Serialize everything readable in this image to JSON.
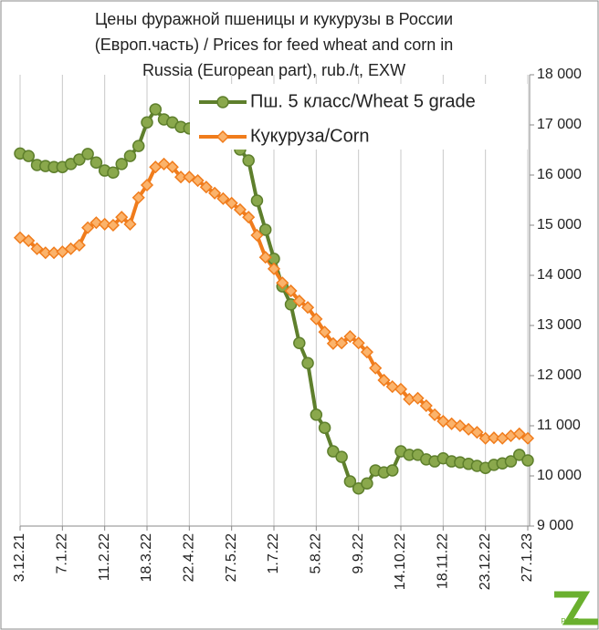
{
  "chart_data": {
    "type": "line",
    "title": [
      "Цены фуражной пшеницы и кукурузы в России",
      "(Европ.часть) / Prices for feed wheat and corn in",
      "Russia (European part), rub./t, EXW"
    ],
    "watermark": "Pro Zerno",
    "categories": [
      "3.12.21",
      null,
      null,
      null,
      null,
      "7.1.22",
      null,
      null,
      null,
      null,
      "11.2.22",
      null,
      null,
      null,
      null,
      "18.3.22",
      null,
      null,
      null,
      null,
      "22.4.22",
      null,
      null,
      null,
      null,
      "27.5.22",
      null,
      null,
      null,
      null,
      "1.7.22",
      null,
      null,
      null,
      null,
      "5.8.22",
      null,
      null,
      null,
      null,
      "9.9.22",
      null,
      null,
      null,
      null,
      "14.10.22",
      null,
      null,
      null,
      null,
      "18.11.22",
      null,
      null,
      null,
      null,
      "23.12.22",
      null,
      null,
      null,
      null,
      "27.1.23"
    ],
    "series": [
      {
        "name": "Пш. 5 класс/Wheat 5 grade",
        "color": "#5e7f2c",
        "marker": "circle",
        "marker_color": "#8aa84c",
        "values": [
          16430,
          16380,
          16200,
          16180,
          16160,
          16160,
          16220,
          16310,
          16420,
          16250,
          16090,
          16050,
          16220,
          16380,
          16580,
          17050,
          17310,
          17110,
          17050,
          16960,
          16930,
          16870,
          16840,
          16800,
          16750,
          16670,
          16510,
          16290,
          15490,
          14910,
          14330,
          13780,
          13420,
          12650,
          12250,
          11220,
          10960,
          10490,
          10380,
          9890,
          9750,
          9850,
          10110,
          10070,
          10110,
          10490,
          10420,
          10420,
          10330,
          10290,
          10350,
          10290,
          10270,
          10240,
          10200,
          10160,
          10220,
          10250,
          10290,
          10420,
          10310
        ]
      },
      {
        "name": "Кукуруза/Corn",
        "color": "#f07c1c",
        "marker": "diamond",
        "marker_color": "#fbb36b",
        "values": [
          14750,
          14690,
          14530,
          14450,
          14450,
          14470,
          14530,
          14600,
          14950,
          15050,
          15020,
          15000,
          15160,
          15020,
          15550,
          15800,
          16160,
          16220,
          16160,
          15960,
          15960,
          15890,
          15760,
          15640,
          15530,
          15440,
          15310,
          15160,
          14800,
          14360,
          14130,
          13850,
          13690,
          13490,
          13360,
          13130,
          12870,
          12640,
          12650,
          12780,
          12650,
          12470,
          12150,
          11910,
          11780,
          11730,
          11530,
          11550,
          11400,
          11220,
          11090,
          11040,
          11000,
          10930,
          10870,
          10750,
          10760,
          10750,
          10800,
          10840,
          10750
        ]
      }
    ],
    "ylim": [
      9000,
      18000
    ],
    "yticks": [
      {
        "value": 9000,
        "label": "9 000"
      },
      {
        "value": 10000,
        "label": "10 000"
      },
      {
        "value": 11000,
        "label": "11 000"
      },
      {
        "value": 12000,
        "label": "12 000"
      },
      {
        "value": 13000,
        "label": "13 000"
      },
      {
        "value": 14000,
        "label": "14 000"
      },
      {
        "value": 15000,
        "label": "15 000"
      },
      {
        "value": 16000,
        "label": "16 000"
      },
      {
        "value": 17000,
        "label": "17 000"
      },
      {
        "value": 18000,
        "label": "18 000"
      }
    ],
    "y_axis_side": "right",
    "grid": "vertical",
    "legend": "top-right"
  }
}
